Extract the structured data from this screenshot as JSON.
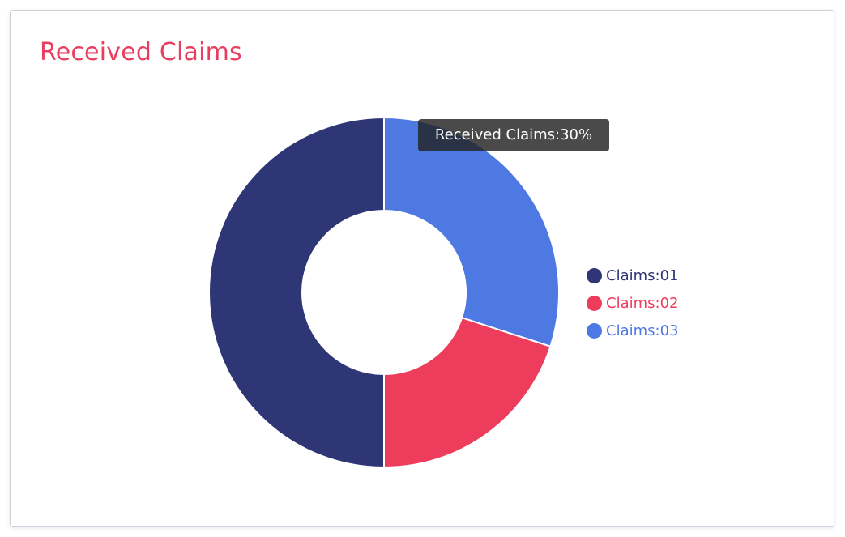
{
  "card": {
    "title": "Received Claims"
  },
  "colors": {
    "title": "#e83e5f",
    "tooltip_bg": "#333333"
  },
  "chart_data": {
    "type": "pie",
    "variant": "donut",
    "categories": [
      "Claims:01",
      "Claims:02",
      "Claims:03"
    ],
    "values": [
      50,
      20,
      30
    ],
    "unit": "%",
    "colors": [
      "#2e3675",
      "#ee3c5d",
      "#4f79e2"
    ],
    "legend": {
      "placement": "right",
      "entries": [
        "Claims:01",
        "Claims:02",
        "Claims:03"
      ]
    },
    "tooltip": {
      "text": "Received Claims:30%",
      "category": "Claims:03"
    }
  }
}
